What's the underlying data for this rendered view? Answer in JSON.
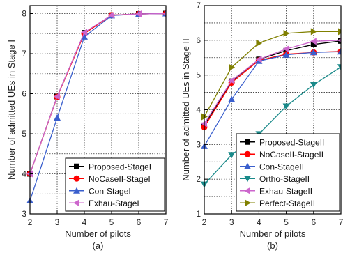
{
  "chart_data": [
    {
      "type": "line",
      "panel_label": "(a)",
      "xlabel": "Number of pilots",
      "ylabel": "Number of admitted UEs in Stage I",
      "x": [
        2,
        3,
        4,
        5,
        6,
        7
      ],
      "xlim": [
        2,
        7
      ],
      "ylim": [
        3,
        8.2
      ],
      "xticks": [
        2,
        3,
        4,
        5,
        6,
        7
      ],
      "yticks": [
        3,
        4,
        5,
        6,
        7,
        8
      ],
      "grid": true,
      "legend_position": "bottom-right",
      "series": [
        {
          "name": "Proposed-StageI",
          "color": "#000000",
          "marker": "square",
          "values": [
            4.0,
            5.93,
            7.52,
            7.96,
            7.99,
            8.0
          ]
        },
        {
          "name": "NoCaseII-StageI",
          "color": "#ff0000",
          "marker": "circle",
          "values": [
            4.0,
            5.92,
            7.5,
            7.96,
            7.99,
            8.0
          ]
        },
        {
          "name": "Con-StageI",
          "color": "#3a5fcd",
          "marker": "triangle-up",
          "values": [
            3.33,
            5.4,
            7.42,
            7.95,
            7.99,
            8.0
          ]
        },
        {
          "name": "Exhau-StageI",
          "color": "#cc66cc",
          "marker": "triangle-left",
          "values": [
            4.0,
            5.93,
            7.53,
            7.96,
            7.99,
            8.0
          ]
        }
      ]
    },
    {
      "type": "line",
      "panel_label": "(b)",
      "xlabel": "Number of pilots",
      "ylabel": "Number of admitted UEs in Stage II",
      "x": [
        2,
        3,
        4,
        5,
        6,
        7
      ],
      "xlim": [
        2,
        7
      ],
      "ylim": [
        1,
        7
      ],
      "xticks": [
        2,
        3,
        4,
        5,
        6,
        7
      ],
      "yticks": [
        1,
        2,
        3,
        4,
        5,
        6,
        7
      ],
      "grid": true,
      "legend_position": "bottom-right",
      "series": [
        {
          "name": "Proposed-StageII",
          "color": "#000000",
          "marker": "square",
          "values": [
            3.55,
            4.82,
            5.45,
            5.7,
            5.88,
            5.98
          ]
        },
        {
          "name": "NoCaseII-StageII",
          "color": "#ff0000",
          "marker": "circle",
          "values": [
            3.5,
            4.78,
            5.42,
            5.6,
            5.65,
            5.68
          ]
        },
        {
          "name": "Con-StageII",
          "color": "#3a5fcd",
          "marker": "triangle-up",
          "values": [
            2.95,
            4.3,
            5.4,
            5.58,
            5.65,
            5.67
          ]
        },
        {
          "name": "Ortho-StageII",
          "color": "#1a8a8a",
          "marker": "triangle-down",
          "values": [
            1.85,
            2.7,
            3.3,
            4.1,
            4.72,
            5.23
          ]
        },
        {
          "name": "Exhau-StageII",
          "color": "#cc66cc",
          "marker": "triangle-left",
          "values": [
            3.6,
            4.84,
            5.45,
            5.75,
            5.97,
            6.0
          ]
        },
        {
          "name": "Perfect-StageII",
          "color": "#808000",
          "marker": "triangle-right",
          "values": [
            3.8,
            5.22,
            5.92,
            6.2,
            6.25,
            6.25
          ]
        }
      ]
    }
  ]
}
